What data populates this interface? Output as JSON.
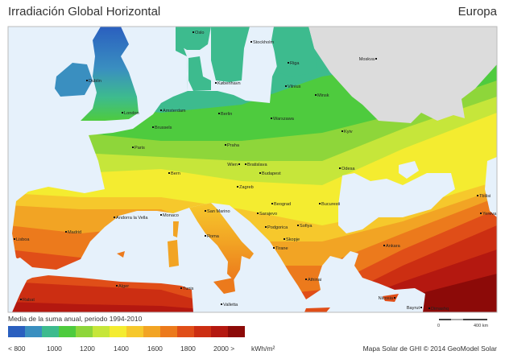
{
  "header": {
    "title": "Irradiación Global Horizontal",
    "region": "Europa"
  },
  "legend": {
    "caption": "Media de la suma anual, periodo 1994-2010",
    "colors": [
      "#2a5fbf",
      "#3a8fc0",
      "#3dbb8e",
      "#4ecb3e",
      "#8ed63a",
      "#c6e63a",
      "#f4ec30",
      "#f6c82c",
      "#f2a424",
      "#ec7a1c",
      "#e04e18",
      "#cc2e12",
      "#b41810",
      "#8c0a08"
    ],
    "ticks": [
      "< 800",
      "1000",
      "1200",
      "1400",
      "1600",
      "1800",
      "2000 >"
    ],
    "unit": "kWh/m²"
  },
  "scale_bar": {
    "start": "0",
    "end": "400 km"
  },
  "credit": "Mapa Solar de GHI © 2014 GeoModel Solar",
  "colors": {
    "sea": "#e6f1fb",
    "no_data_land": "#dcdcdc"
  },
  "cities": [
    "Oslo",
    "Stockholm",
    "Riga",
    "Moskva",
    "Dublin",
    "København",
    "Vilnius",
    "Minsk",
    "London",
    "Amsterdam",
    "Berlin",
    "Warszawa",
    "Brussels",
    "Kyiv",
    "Paris",
    "Praha",
    "Wien",
    "Bratislava",
    "Bern",
    "Odesa",
    "Budapest",
    "Zagreb",
    "Beograd",
    "Bucuresti",
    "Sarajevo",
    "Sofiya",
    "Podgorica",
    "Skopje",
    "Tirane",
    "Ankara",
    "Athinai",
    "Lisboa",
    "Madrid",
    "Andorra la Vella",
    "Monaco",
    "San Marino",
    "Roma",
    "Alger",
    "Tunis",
    "Valletta",
    "Rabat",
    "Nicosia",
    "Bayrut",
    "Dimashq",
    "Tbilisi",
    "Yerevan"
  ]
}
